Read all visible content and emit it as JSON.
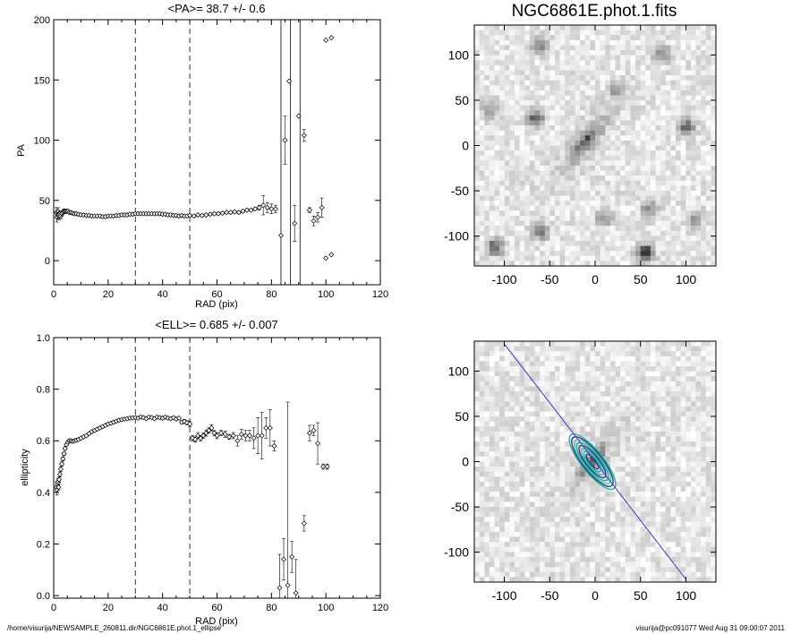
{
  "footer": {
    "left": "/home/visurija/NEWSAMPLE_260811.dir/NGC6861E.phot.1_ellipse",
    "right": "visurija@pc091077  Wed Aug 31 09:00:07 2011"
  },
  "chart_data": [
    {
      "type": "scatter",
      "title": "<PA>=  38.7 +/-   0.6",
      "xlabel": "RAD (pix)",
      "ylabel": "PA",
      "xlim": [
        0,
        120
      ],
      "ylim": [
        -20,
        200
      ],
      "xticks": [
        "0",
        "20",
        "40",
        "60",
        "80",
        "100",
        "120"
      ],
      "yticks": [
        "0",
        "50",
        "100",
        "150",
        "200"
      ],
      "xtick_values": [
        0,
        20,
        40,
        60,
        80,
        100,
        120
      ],
      "ytick_values": [
        0,
        50,
        100,
        150,
        200
      ],
      "vlines_dashed": [
        30,
        50
      ],
      "vlines_solid": [
        83.5,
        87,
        90.5
      ],
      "points": [
        [
          1.0,
          40,
          4
        ],
        [
          1.2,
          36,
          4
        ],
        [
          1.4,
          38,
          3
        ],
        [
          1.6,
          41,
          3
        ],
        [
          1.8,
          38,
          3
        ],
        [
          2.0,
          37,
          3
        ],
        [
          2.3,
          39,
          2
        ],
        [
          2.6,
          37,
          2
        ],
        [
          3.0,
          39,
          2
        ],
        [
          3.4,
          40,
          2
        ],
        [
          3.8,
          41,
          2
        ],
        [
          4.2,
          41,
          1
        ],
        [
          4.7,
          41,
          1
        ],
        [
          5.2,
          41,
          1
        ],
        [
          5.7,
          40,
          1
        ],
        [
          6.3,
          40,
          1
        ],
        [
          6.9,
          39.5,
          1
        ],
        [
          7.6,
          39,
          1
        ],
        [
          8.3,
          39,
          1
        ],
        [
          9.1,
          38.5,
          1
        ],
        [
          10,
          38,
          1
        ],
        [
          11,
          38,
          1
        ],
        [
          12,
          37.5,
          1
        ],
        [
          13,
          37.5,
          1
        ],
        [
          14,
          37,
          1
        ],
        [
          15,
          37,
          1
        ],
        [
          16,
          37,
          1
        ],
        [
          17,
          37,
          1
        ],
        [
          18,
          36.5,
          1
        ],
        [
          19,
          36.5,
          1
        ],
        [
          20,
          37,
          1
        ],
        [
          21,
          37,
          1
        ],
        [
          22,
          37,
          1
        ],
        [
          23,
          37.5,
          1
        ],
        [
          24,
          37.5,
          1
        ],
        [
          25,
          38,
          1
        ],
        [
          26,
          38,
          1
        ],
        [
          27,
          38,
          1
        ],
        [
          28,
          38.5,
          1
        ],
        [
          29,
          38.5,
          1
        ],
        [
          30,
          39,
          1
        ],
        [
          31,
          39,
          1
        ],
        [
          32,
          39,
          1
        ],
        [
          33,
          39,
          1
        ],
        [
          34,
          39,
          1
        ],
        [
          35,
          39,
          1
        ],
        [
          36,
          39,
          1
        ],
        [
          37,
          39,
          1
        ],
        [
          38,
          39,
          1
        ],
        [
          39,
          39,
          1
        ],
        [
          40,
          38.5,
          1
        ],
        [
          41,
          38.5,
          1
        ],
        [
          42,
          38,
          1
        ],
        [
          43,
          38,
          1
        ],
        [
          44,
          37.5,
          1
        ],
        [
          45,
          37.5,
          1
        ],
        [
          46,
          37,
          1
        ],
        [
          47,
          37.5,
          1
        ],
        [
          48,
          37,
          1
        ],
        [
          49,
          37,
          1
        ],
        [
          50,
          37.5,
          1
        ],
        [
          51.5,
          37,
          1
        ],
        [
          53,
          38,
          1
        ],
        [
          54.5,
          37.5,
          1
        ],
        [
          56,
          38,
          1
        ],
        [
          57.5,
          38.5,
          1
        ],
        [
          59,
          39,
          1
        ],
        [
          60.5,
          39,
          1
        ],
        [
          62,
          39.5,
          1
        ],
        [
          63.5,
          40,
          1
        ],
        [
          65,
          40,
          1
        ],
        [
          66.5,
          40.5,
          1
        ],
        [
          68,
          40,
          1
        ],
        [
          69.5,
          41,
          1
        ],
        [
          71,
          42,
          1
        ],
        [
          72.5,
          42,
          1
        ],
        [
          74,
          43,
          1
        ],
        [
          75.5,
          44,
          2
        ],
        [
          77,
          46,
          8
        ],
        [
          78.5,
          44,
          4
        ],
        [
          80,
          43,
          4
        ],
        [
          81.5,
          43,
          3
        ],
        [
          83.5,
          21,
          0
        ],
        [
          85,
          100,
          20
        ],
        [
          86.5,
          149,
          0
        ],
        [
          88.5,
          31,
          15
        ],
        [
          90,
          120,
          0
        ],
        [
          92,
          104,
          5
        ],
        [
          94,
          42,
          2
        ],
        [
          95.5,
          33,
          4
        ],
        [
          97,
          36,
          4
        ],
        [
          98.5,
          44,
          8
        ],
        [
          100,
          2,
          0
        ],
        [
          102,
          5,
          0
        ],
        [
          100,
          183,
          0
        ],
        [
          102,
          185,
          0
        ]
      ]
    },
    {
      "type": "scatter",
      "title": "<ELL>= 0.685 +/-  0.007",
      "xlabel": "RAD (pix)",
      "ylabel": "ellipticity",
      "xlim": [
        0,
        120
      ],
      "ylim": [
        -0.01,
        1.0
      ],
      "xticks": [
        "0",
        "20",
        "40",
        "60",
        "80",
        "100",
        "120"
      ],
      "yticks": [
        "0.0",
        "0.2",
        "0.4",
        "0.6",
        "0.8",
        "1.0"
      ],
      "xtick_values": [
        0,
        20,
        40,
        60,
        80,
        100,
        120
      ],
      "ytick_values": [
        0,
        0.2,
        0.4,
        0.6,
        0.8,
        1.0
      ],
      "vlines_dashed": [
        30,
        50
      ],
      "vlines_solid": [],
      "points": [
        [
          1.0,
          0.42,
          0.02
        ],
        [
          1.2,
          0.41,
          0.02
        ],
        [
          1.4,
          0.43,
          0.015
        ],
        [
          1.6,
          0.44,
          0.015
        ],
        [
          1.8,
          0.42,
          0.01
        ],
        [
          2.0,
          0.45,
          0.01
        ],
        [
          2.3,
          0.47,
          0.01
        ],
        [
          2.6,
          0.49,
          0.01
        ],
        [
          3.0,
          0.51,
          0.008
        ],
        [
          3.4,
          0.53,
          0.008
        ],
        [
          3.8,
          0.55,
          0.006
        ],
        [
          4.2,
          0.57,
          0.006
        ],
        [
          4.7,
          0.585,
          0.005
        ],
        [
          5.2,
          0.595,
          0.005
        ],
        [
          5.7,
          0.6,
          0.004
        ],
        [
          6.3,
          0.6,
          0.004
        ],
        [
          6.9,
          0.598,
          0.004
        ],
        [
          7.6,
          0.6,
          0.004
        ],
        [
          8.3,
          0.602,
          0.004
        ],
        [
          9.1,
          0.605,
          0.004
        ],
        [
          10,
          0.61,
          0.004
        ],
        [
          11,
          0.615,
          0.004
        ],
        [
          12,
          0.62,
          0.004
        ],
        [
          13,
          0.628,
          0.004
        ],
        [
          14,
          0.635,
          0.004
        ],
        [
          15,
          0.64,
          0.004
        ],
        [
          16,
          0.645,
          0.004
        ],
        [
          17,
          0.65,
          0.004
        ],
        [
          18,
          0.655,
          0.004
        ],
        [
          19,
          0.66,
          0.004
        ],
        [
          20,
          0.665,
          0.004
        ],
        [
          21,
          0.668,
          0.004
        ],
        [
          22,
          0.672,
          0.004
        ],
        [
          23,
          0.676,
          0.004
        ],
        [
          24,
          0.68,
          0.004
        ],
        [
          25,
          0.682,
          0.004
        ],
        [
          26,
          0.684,
          0.004
        ],
        [
          27,
          0.686,
          0.004
        ],
        [
          28,
          0.688,
          0.004
        ],
        [
          29,
          0.689,
          0.004
        ],
        [
          30,
          0.69,
          0.004
        ],
        [
          31,
          0.688,
          0.004
        ],
        [
          32,
          0.692,
          0.004
        ],
        [
          33,
          0.69,
          0.004
        ],
        [
          34,
          0.686,
          0.004
        ],
        [
          35,
          0.692,
          0.004
        ],
        [
          36,
          0.69,
          0.004
        ],
        [
          37,
          0.686,
          0.004
        ],
        [
          38,
          0.692,
          0.004
        ],
        [
          39,
          0.69,
          0.004
        ],
        [
          40,
          0.688,
          0.004
        ],
        [
          41,
          0.692,
          0.004
        ],
        [
          42,
          0.688,
          0.004
        ],
        [
          43,
          0.686,
          0.004
        ],
        [
          44,
          0.69,
          0.004
        ],
        [
          45,
          0.684,
          0.004
        ],
        [
          46,
          0.688,
          0.004
        ],
        [
          47,
          0.672,
          0.006
        ],
        [
          48,
          0.675,
          0.008
        ],
        [
          49,
          0.67,
          0.008
        ],
        [
          50,
          0.665,
          0.01
        ],
        [
          51,
          0.61,
          0.01
        ],
        [
          52,
          0.605,
          0.01
        ],
        [
          53,
          0.62,
          0.012
        ],
        [
          54,
          0.61,
          0.01
        ],
        [
          55,
          0.62,
          0.01
        ],
        [
          56,
          0.63,
          0.012
        ],
        [
          57,
          0.64,
          0.01
        ],
        [
          58,
          0.65,
          0.012
        ],
        [
          59,
          0.63,
          0.01
        ],
        [
          60,
          0.62,
          0.012
        ],
        [
          61.5,
          0.63,
          0.01
        ],
        [
          63,
          0.625,
          0.012
        ],
        [
          64.5,
          0.615,
          0.01
        ],
        [
          66,
          0.62,
          0.012
        ],
        [
          67.5,
          0.6,
          0.02
        ],
        [
          69,
          0.625,
          0.02
        ],
        [
          70.5,
          0.62,
          0.02
        ],
        [
          72,
          0.62,
          0.02
        ],
        [
          73.5,
          0.61,
          0.04
        ],
        [
          75,
          0.62,
          0.07
        ],
        [
          76.5,
          0.62,
          0.09
        ],
        [
          78,
          0.65,
          0.04
        ],
        [
          79.5,
          0.65,
          0.07
        ],
        [
          81,
          0.58,
          0.02
        ],
        [
          83,
          0.03,
          0.13
        ],
        [
          84.5,
          0.14,
          0.08
        ],
        [
          86,
          0.04,
          0.71
        ],
        [
          87.5,
          0.15,
          0.06
        ],
        [
          89,
          0.01,
          0.13
        ],
        [
          92,
          0.28,
          0.03
        ],
        [
          94,
          0.63,
          0.03
        ],
        [
          95.5,
          0.64,
          0.02
        ],
        [
          97,
          0.59,
          0.08
        ],
        [
          99,
          0.5,
          0.01
        ],
        [
          100.5,
          0.5,
          0.01
        ]
      ]
    },
    {
      "type": "heatmap",
      "title": "NGC6861E.phot.1.fits",
      "xlim": [
        -133,
        133
      ],
      "ylim": [
        -133,
        133
      ],
      "xticks": [
        "-100",
        "-50",
        "0",
        "50",
        "100"
      ],
      "yticks": [
        "-100",
        "-50",
        "0",
        "50",
        "100"
      ],
      "xtick_values": [
        -100,
        -50,
        0,
        50,
        100
      ],
      "ytick_values": [
        -100,
        -50,
        0,
        50,
        100
      ],
      "galaxy": {
        "center": [
          -10,
          5
        ],
        "pa_deg": 38.7,
        "ellipticity": 0.685,
        "semi_major": 45
      },
      "sources": [
        {
          "x": 55,
          "y": -118,
          "strength": 1.0
        },
        {
          "x": -110,
          "y": -112,
          "strength": 0.7
        },
        {
          "x": -60,
          "y": -95,
          "strength": 0.6
        },
        {
          "x": -65,
          "y": 30,
          "strength": 0.7
        },
        {
          "x": 100,
          "y": 20,
          "strength": 0.7
        },
        {
          "x": 60,
          "y": -70,
          "strength": 0.5
        },
        {
          "x": 75,
          "y": 100,
          "strength": 0.5
        },
        {
          "x": -60,
          "y": 110,
          "strength": 0.5
        },
        {
          "x": 10,
          "y": -80,
          "strength": 0.4
        },
        {
          "x": 25,
          "y": 60,
          "strength": 0.4
        },
        {
          "x": -115,
          "y": 40,
          "strength": 0.4
        },
        {
          "x": 110,
          "y": -80,
          "strength": 0.4
        }
      ]
    },
    {
      "type": "heatmap",
      "xlim": [
        -133,
        133
      ],
      "ylim": [
        -133,
        133
      ],
      "xticks": [
        "-100",
        "-50",
        "0",
        "50",
        "100"
      ],
      "yticks": [
        "-100",
        "-50",
        "0",
        "50",
        "100"
      ],
      "xtick_values": [
        -100,
        -50,
        0,
        50,
        100
      ],
      "ytick_values": [
        -100,
        -50,
        0,
        50,
        100
      ],
      "galaxy": {
        "center": [
          -3,
          0
        ],
        "pa_deg": 38.7,
        "ellipticity": 0.685,
        "semi_major": 40
      },
      "major_axis_line": {
        "from": [
          -100,
          130
        ],
        "to": [
          100,
          -130
        ],
        "color": "#3b3bbf"
      },
      "contour_semi_major": [
        10,
        14,
        18,
        22,
        26,
        30,
        34,
        38
      ],
      "contour_colors": [
        "#1f3a6e",
        "#2aa8a8",
        "#37c2b8"
      ]
    }
  ]
}
